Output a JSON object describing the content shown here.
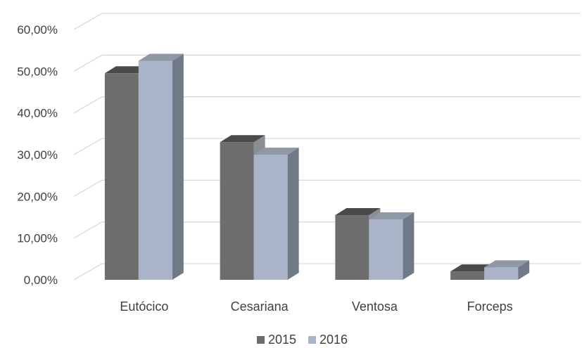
{
  "chart_data": {
    "type": "bar",
    "categories": [
      "Eutócico",
      "Cesariana",
      "Ventosa",
      "Forceps"
    ],
    "series": [
      {
        "name": "2015",
        "values": [
          49.5,
          33.0,
          15.5,
          2.0
        ],
        "color": "#6d6d6d",
        "top_color": "#4a4a4a",
        "side_color": "#8a8f94"
      },
      {
        "name": "2016",
        "values": [
          52.5,
          30.0,
          14.5,
          3.0
        ],
        "color": "#aab4c8",
        "top_color": "#8e98a6",
        "side_color": "#6f7a86"
      }
    ],
    "y_ticks": [
      "0,00%",
      "10,00%",
      "20,00%",
      "30,00%",
      "40,00%",
      "50,00%",
      "60,00%"
    ],
    "ylim": [
      0,
      60
    ],
    "grid": true,
    "legend_position": "bottom",
    "title": "",
    "xlabel": "",
    "ylabel": ""
  }
}
